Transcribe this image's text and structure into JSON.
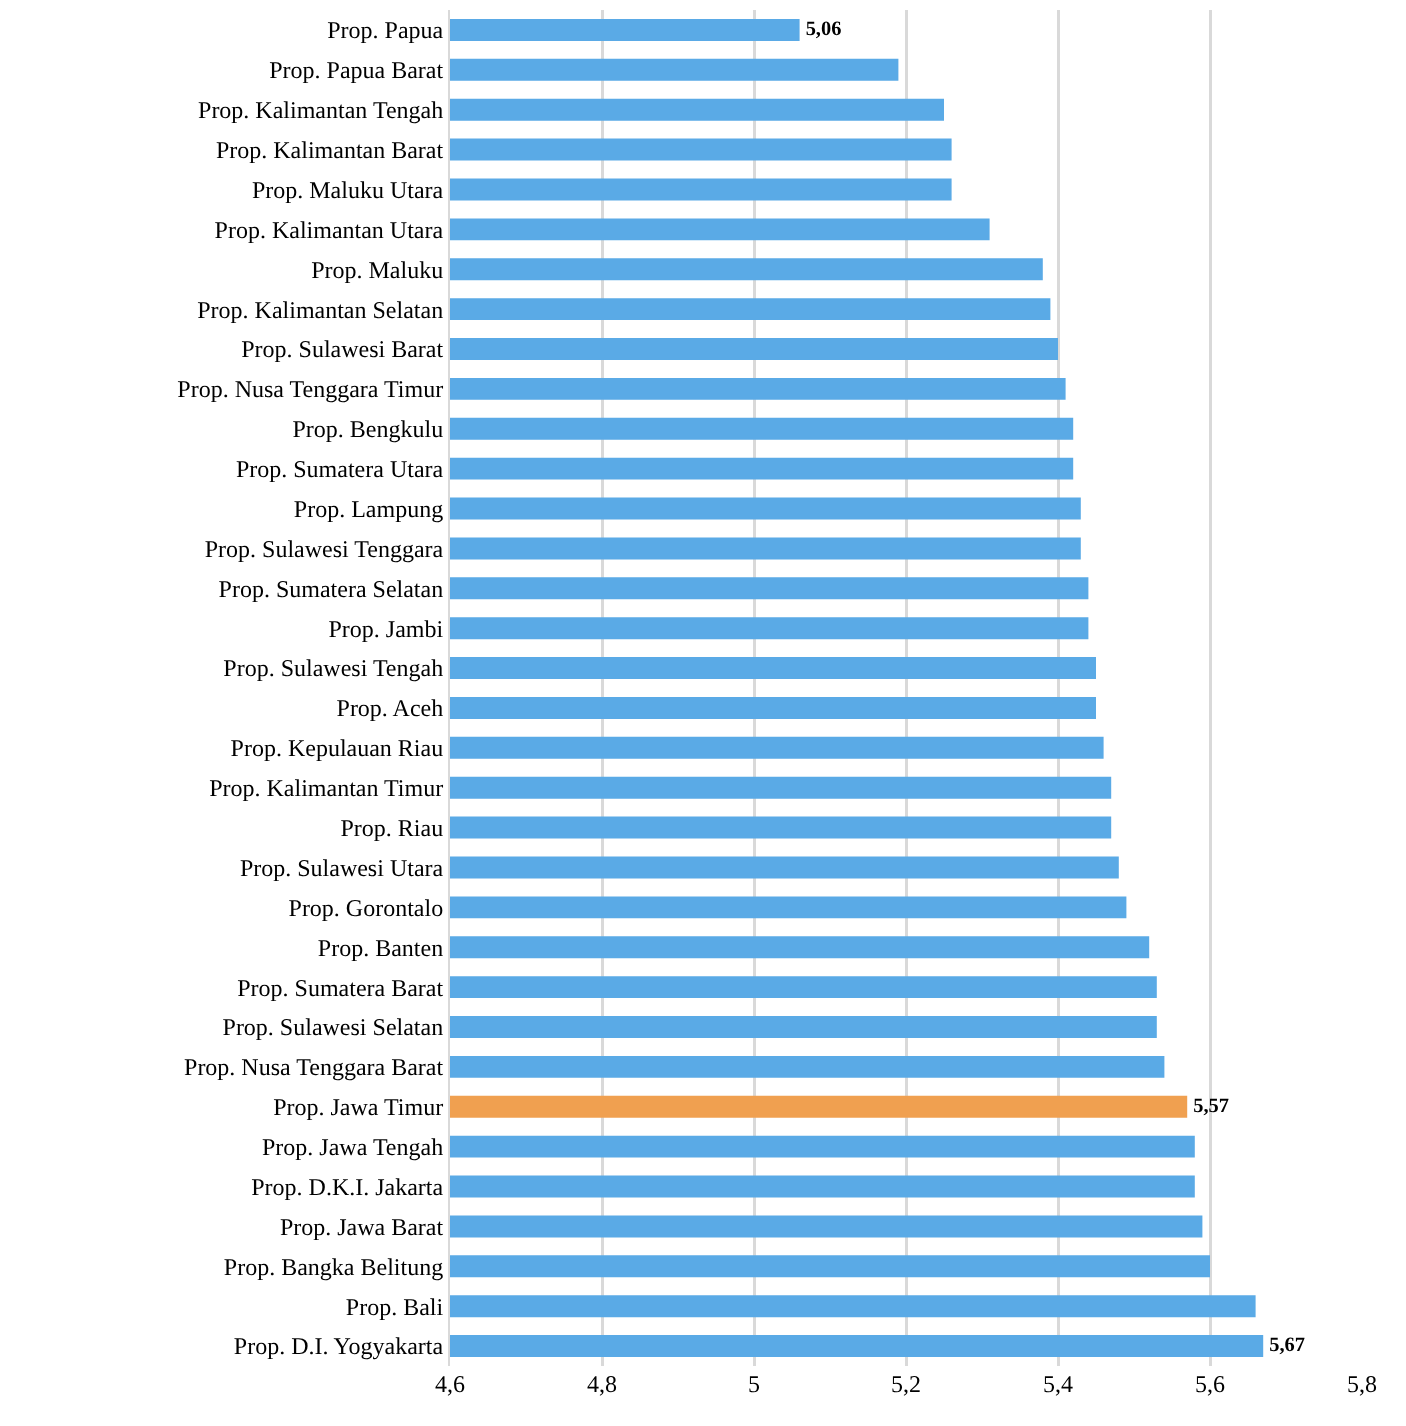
{
  "chart_data": {
    "type": "bar",
    "orientation": "horizontal",
    "categories": [
      "Prop. Papua",
      "Prop. Papua Barat",
      "Prop. Kalimantan Tengah",
      "Prop. Kalimantan Barat",
      "Prop. Maluku Utara",
      "Prop. Kalimantan Utara",
      "Prop. Maluku",
      "Prop. Kalimantan Selatan",
      "Prop. Sulawesi Barat",
      "Prop. Nusa Tenggara Timur",
      "Prop. Bengkulu",
      "Prop. Sumatera Utara",
      "Prop. Lampung",
      "Prop. Sulawesi Tenggara",
      "Prop. Sumatera Selatan",
      "Prop. Jambi",
      "Prop. Sulawesi Tengah",
      "Prop. Aceh",
      "Prop. Kepulauan Riau",
      "Prop. Kalimantan Timur",
      "Prop. Riau",
      "Prop. Sulawesi Utara",
      "Prop. Gorontalo",
      "Prop. Banten",
      "Prop. Sumatera Barat",
      "Prop. Sulawesi Selatan",
      "Prop. Nusa Tenggara Barat",
      "Prop. Jawa Timur",
      "Prop. Jawa Tengah",
      "Prop. D.K.I. Jakarta",
      "Prop. Jawa Barat",
      "Prop. Bangka Belitung",
      "Prop. Bali",
      "Prop. D.I. Yogyakarta"
    ],
    "values": [
      5.06,
      5.19,
      5.25,
      5.26,
      5.26,
      5.31,
      5.38,
      5.39,
      5.4,
      5.41,
      5.42,
      5.42,
      5.43,
      5.43,
      5.44,
      5.44,
      5.45,
      5.45,
      5.46,
      5.47,
      5.47,
      5.48,
      5.49,
      5.52,
      5.53,
      5.53,
      5.54,
      5.57,
      5.58,
      5.58,
      5.59,
      5.6,
      5.66,
      5.67
    ],
    "colors": [
      "#5aaae6",
      "#5aaae6",
      "#5aaae6",
      "#5aaae6",
      "#5aaae6",
      "#5aaae6",
      "#5aaae6",
      "#5aaae6",
      "#5aaae6",
      "#5aaae6",
      "#5aaae6",
      "#5aaae6",
      "#5aaae6",
      "#5aaae6",
      "#5aaae6",
      "#5aaae6",
      "#5aaae6",
      "#5aaae6",
      "#5aaae6",
      "#5aaae6",
      "#5aaae6",
      "#5aaae6",
      "#5aaae6",
      "#5aaae6",
      "#5aaae6",
      "#5aaae6",
      "#5aaae6",
      "#f0a050",
      "#5aaae6",
      "#5aaae6",
      "#5aaae6",
      "#5aaae6",
      "#5aaae6",
      "#5aaae6"
    ],
    "value_labels": [
      "5,06",
      null,
      null,
      null,
      null,
      null,
      null,
      null,
      null,
      null,
      null,
      null,
      null,
      null,
      null,
      null,
      null,
      null,
      null,
      null,
      null,
      null,
      null,
      null,
      null,
      null,
      null,
      "5,57",
      null,
      null,
      null,
      null,
      null,
      "5,67"
    ],
    "xlim": [
      4.6,
      5.8
    ],
    "xticks": [
      {
        "value": 4.6,
        "label": "4,6"
      },
      {
        "value": 4.8,
        "label": "4,8"
      },
      5,
      {
        "value": 5.2,
        "label": "5,2"
      },
      {
        "value": 5.4,
        "label": "5,4"
      },
      {
        "value": 5.6,
        "label": "5,6"
      },
      {
        "value": 5.8,
        "label": "5,8"
      }
    ],
    "grid": "x"
  }
}
